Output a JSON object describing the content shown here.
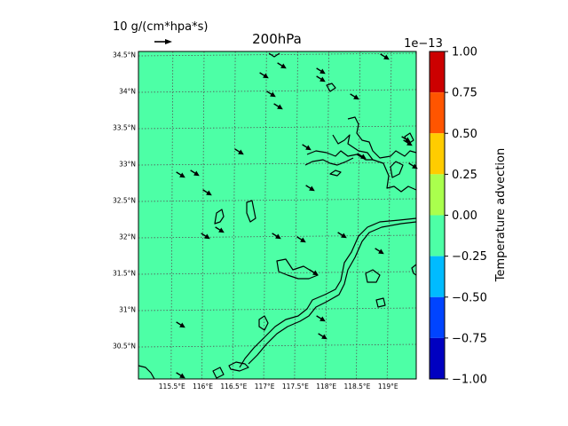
{
  "chart_data": {
    "type": "heatmap",
    "title": "200hPa",
    "quiver_key": {
      "label": "10 g/(cm*hpa*s)"
    },
    "map": {
      "lon_ticks": [
        115.5,
        116,
        116.5,
        117,
        117.5,
        118,
        118.5,
        119
      ],
      "lon_tick_labels": [
        "115.5°E",
        "116°E",
        "116.5°E",
        "117°E",
        "117.5°E",
        "118°E",
        "118.5°E",
        "119°E"
      ],
      "lat_ticks": [
        34.5,
        34,
        33.5,
        33,
        32.5,
        32,
        31.5,
        31,
        30.5
      ],
      "lat_tick_labels": [
        "34.5°N",
        "34°N",
        "33.5°N",
        "33°N",
        "32.5°N",
        "32°N",
        "31.5°N",
        "31°N",
        "30.5°N"
      ],
      "lon_range": [
        115.0,
        119.5
      ],
      "lat_range": [
        30.0,
        34.5
      ],
      "grid": true,
      "field_color": "#4dffa6"
    },
    "colorbar": {
      "label": "Temperature advection",
      "offset_label": "1e−13",
      "ticks": [
        1.0,
        0.75,
        0.5,
        0.25,
        0.0,
        -0.25,
        -0.5,
        -0.75,
        -1.0
      ],
      "tick_labels": [
        "1.00",
        "0.75",
        "0.50",
        "0.25",
        "0.00",
        "−0.25",
        "−0.50",
        "−0.75",
        "−1.00"
      ],
      "bands": [
        {
          "from": 0.75,
          "to": 1.0,
          "color": "#cc0000"
        },
        {
          "from": 0.5,
          "to": 0.75,
          "color": "#ff5500"
        },
        {
          "from": 0.25,
          "to": 0.5,
          "color": "#ffcc00"
        },
        {
          "from": 0.0,
          "to": 0.25,
          "color": "#aaff4d"
        },
        {
          "from": -0.25,
          "to": 0.0,
          "color": "#4dffa6"
        },
        {
          "from": -0.5,
          "to": -0.25,
          "color": "#00bbff"
        },
        {
          "from": -0.75,
          "to": -0.5,
          "color": "#0044ff"
        },
        {
          "from": -1.0,
          "to": -0.75,
          "color": "#0000c0"
        }
      ]
    }
  }
}
